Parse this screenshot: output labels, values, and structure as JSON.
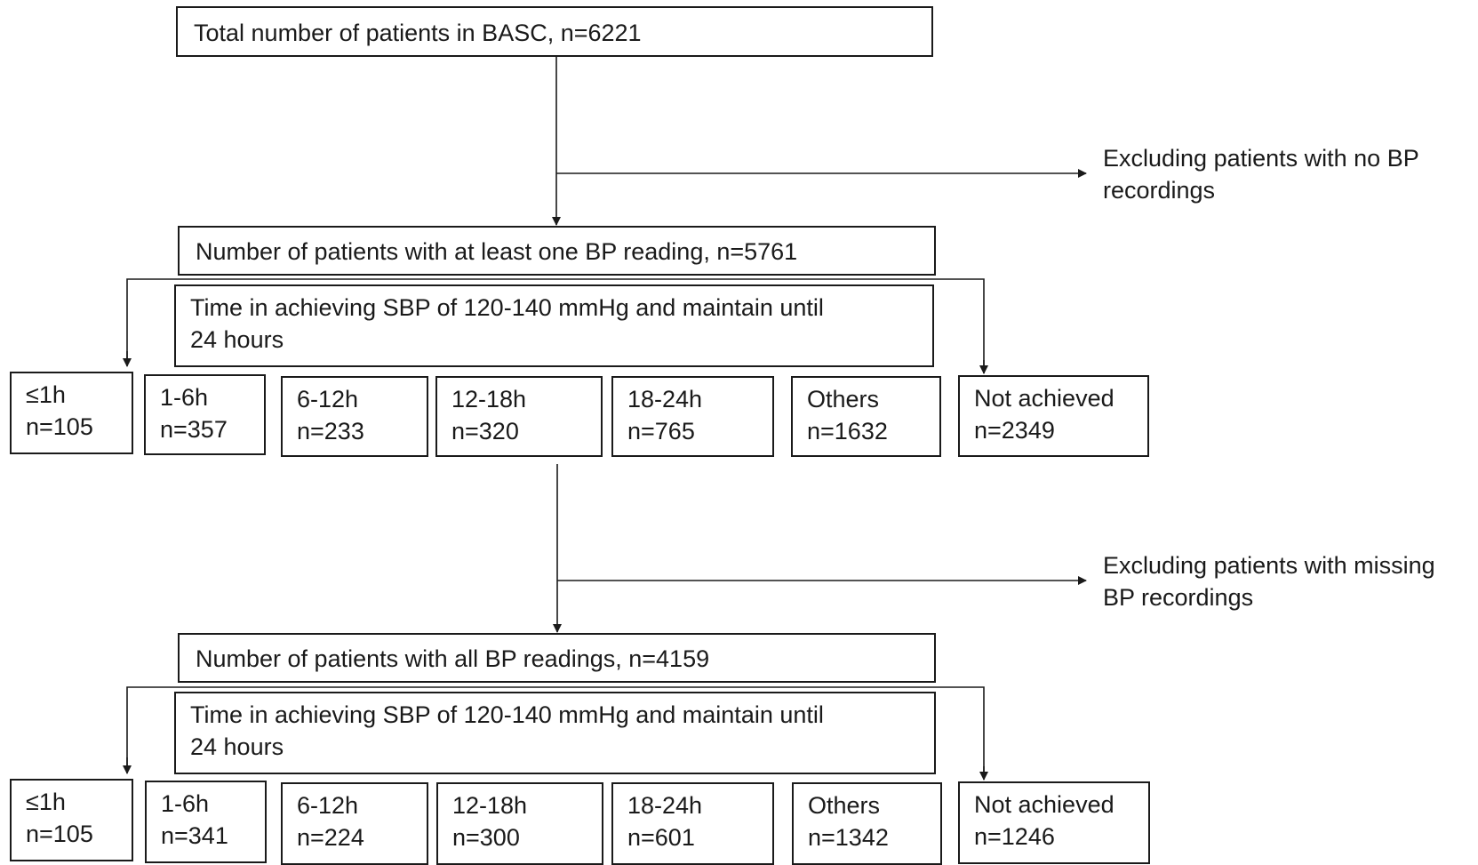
{
  "step1": {
    "text": "Total number of patients in BASC, n=6221"
  },
  "exclusion1": {
    "line1": "Excluding patients with no BP",
    "line2": "recordings"
  },
  "step2": {
    "text": "Number of patients with at least one BP reading, n=5761"
  },
  "groups1": {
    "header_line1": "Time in achieving SBP of 120-140 mmHg and maintain until",
    "header_line2": "24 hours",
    "items": [
      {
        "label": "≤1h",
        "n": "n=105"
      },
      {
        "label": "1-6h",
        "n": "n=357"
      },
      {
        "label": "6-12h",
        "n": "n=233"
      },
      {
        "label": "12-18h",
        "n": "n=320"
      },
      {
        "label": "18-24h",
        "n": "n=765"
      },
      {
        "label": "Others",
        "n": "n=1632"
      },
      {
        "label": "Not achieved",
        "n": "n=2349"
      }
    ]
  },
  "exclusion2": {
    "line1": "Excluding patients with missing",
    "line2": "BP recordings"
  },
  "step3": {
    "text": "Number of patients with all BP readings, n=4159"
  },
  "groups2": {
    "header_line1": "Time in achieving SBP of 120-140 mmHg and maintain until",
    "header_line2": "24 hours",
    "items": [
      {
        "label": "≤1h",
        "n": "n=105"
      },
      {
        "label": "1-6h",
        "n": "n=341"
      },
      {
        "label": "6-12h",
        "n": "n=224"
      },
      {
        "label": "12-18h",
        "n": "n=300"
      },
      {
        "label": "18-24h",
        "n": "n=601"
      },
      {
        "label": "Others",
        "n": "n=1342"
      },
      {
        "label": "Not achieved",
        "n": "n=1246"
      }
    ]
  }
}
